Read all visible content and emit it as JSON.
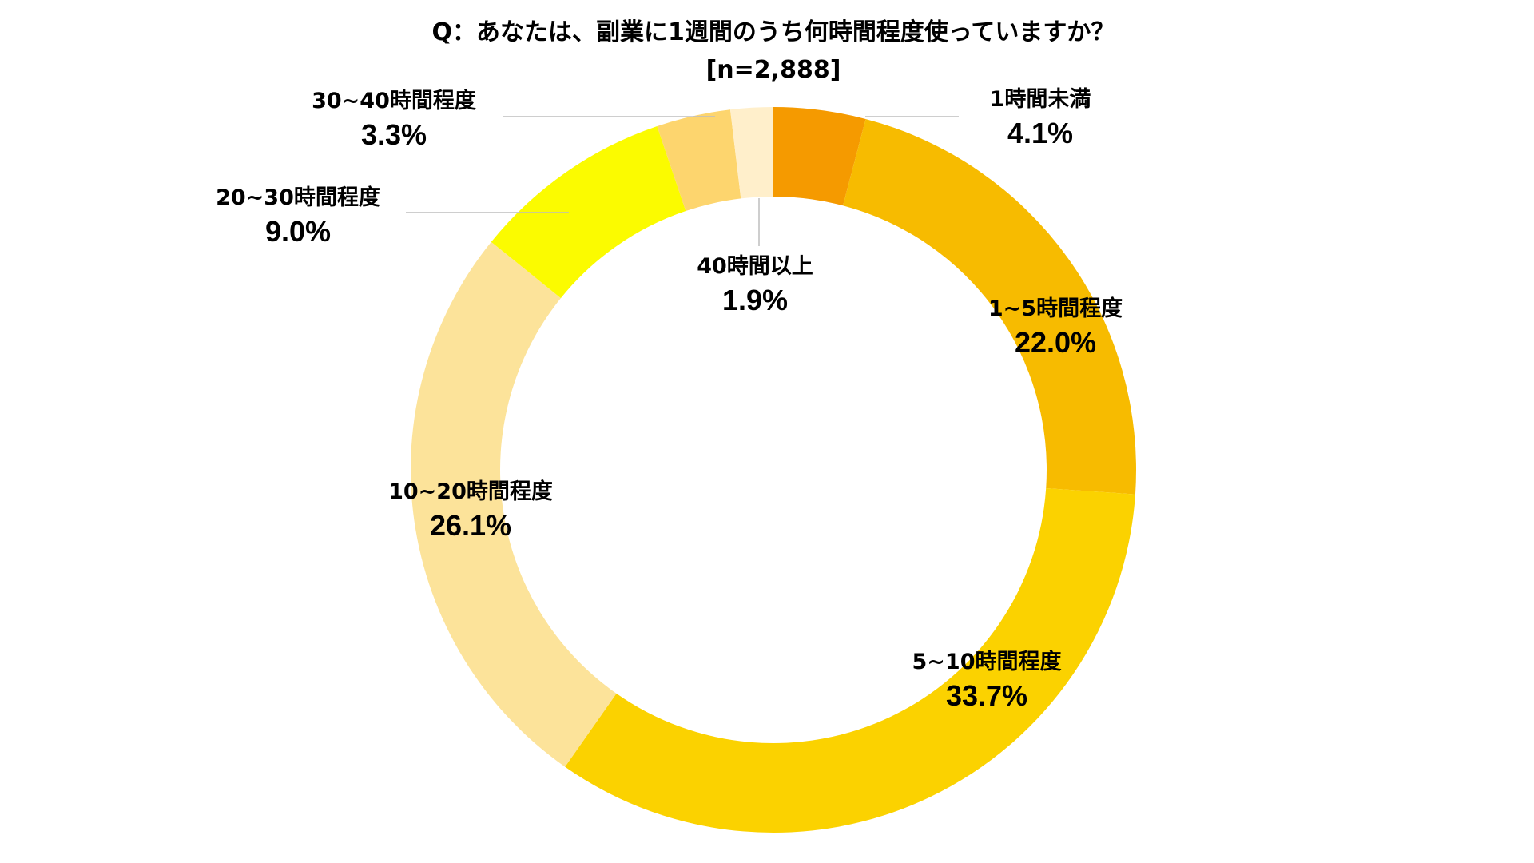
{
  "chart_data": {
    "type": "pie",
    "title": "Q：あなたは、副業に1週間のうち何時間程度使っていますか？",
    "subtitle": "[n=2,888]",
    "slices": [
      {
        "label": "1時間未満",
        "value": 4.1,
        "display": "4.1%",
        "color": "#F59A00"
      },
      {
        "label": "1~5時間程度",
        "value": 22.0,
        "display": "22.0%",
        "color": "#F7BB00"
      },
      {
        "label": "5~10時間程度",
        "value": 33.7,
        "display": "33.7%",
        "color": "#FBD200"
      },
      {
        "label": "10~20時間程度",
        "value": 26.1,
        "display": "26.1%",
        "color": "#FCE39A"
      },
      {
        "label": "20~30時間程度",
        "value": 9.0,
        "display": "9.0%",
        "color": "#FBFB00"
      },
      {
        "label": "30~40時間程度",
        "value": 3.3,
        "display": "3.3%",
        "color": "#FDD56E"
      },
      {
        "label": "40時間以上",
        "value": 1.9,
        "display": "1.9%",
        "color": "#FFEFCB"
      }
    ]
  }
}
